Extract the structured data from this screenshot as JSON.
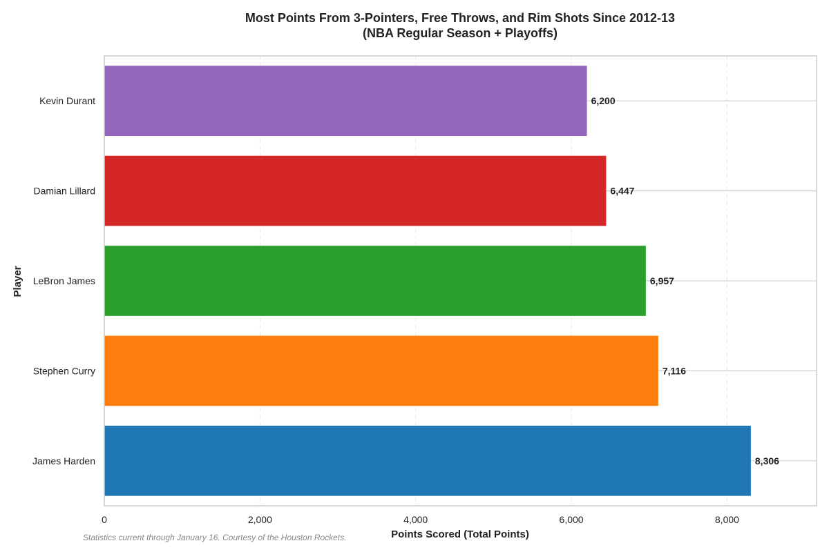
{
  "chart_data": {
    "type": "bar",
    "orientation": "horizontal",
    "title": [
      "Most Points From 3-Pointers, Free Throws, and Rim Shots Since 2012-13",
      "(NBA Regular Season + Playoffs)"
    ],
    "xlabel": "Points Scored (Total Points)",
    "ylabel": "Player",
    "xlim": [
      0,
      9150
    ],
    "xticks": [
      0,
      2000,
      4000,
      6000,
      8000
    ],
    "xtick_labels": [
      "0",
      "2,000",
      "4,000",
      "6,000",
      "8,000"
    ],
    "categories": [
      "Kevin Durant",
      "Damian Lillard",
      "LeBron James",
      "Stephen Curry",
      "James Harden"
    ],
    "values": [
      6200,
      6447,
      6957,
      7116,
      8306
    ],
    "value_labels": [
      "6,200",
      "6,447",
      "6,957",
      "7,116",
      "8,306"
    ],
    "colors": [
      "#9467bd",
      "#d62728",
      "#2ca02c",
      "#ff7f0e",
      "#1f77b4"
    ],
    "grid": true,
    "footnote": "Statistics current through January 16. Courtesy of the Houston Rockets."
  }
}
